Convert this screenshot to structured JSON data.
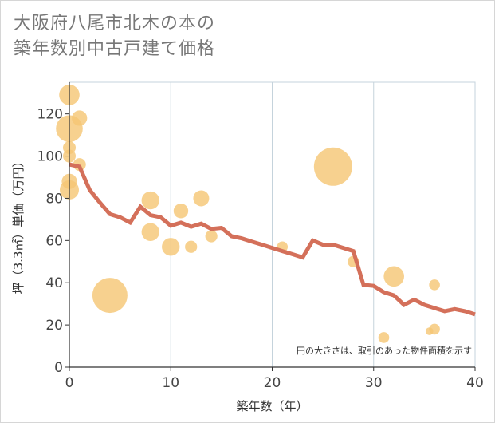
{
  "title_line1": "大阪府八尾市北木の本の",
  "title_line2": "築年数別中古戸建て価格",
  "chart_data": {
    "type": "scatter",
    "xlabel": "築年数（年）",
    "ylabel": "坪（3.3㎡）単価（万円）",
    "xlim": [
      0,
      40
    ],
    "ylim": [
      0,
      135
    ],
    "xticks": [
      0,
      10,
      20,
      30,
      40
    ],
    "yticks": [
      0,
      20,
      40,
      60,
      80,
      100,
      120
    ],
    "grid": true,
    "note": "円の大きさは、取引のあった物件面積を示す",
    "colors": {
      "bubble": "#f5c673",
      "line": "#d4705a",
      "grid": "#c5d3dc"
    },
    "bubbles": [
      {
        "x": 0,
        "y": 129,
        "size": 2.2
      },
      {
        "x": 0,
        "y": 113,
        "size": 3.2
      },
      {
        "x": 1,
        "y": 118,
        "size": 1.4
      },
      {
        "x": 0,
        "y": 104,
        "size": 1.0
      },
      {
        "x": 0,
        "y": 100,
        "size": 1.0
      },
      {
        "x": 1,
        "y": 96,
        "size": 1.0
      },
      {
        "x": 0,
        "y": 88,
        "size": 1.4
      },
      {
        "x": 0,
        "y": 84,
        "size": 2.0
      },
      {
        "x": 4,
        "y": 34,
        "size": 4.5
      },
      {
        "x": 8,
        "y": 79,
        "size": 1.8
      },
      {
        "x": 8,
        "y": 64,
        "size": 1.8
      },
      {
        "x": 10,
        "y": 57,
        "size": 1.8
      },
      {
        "x": 11,
        "y": 74,
        "size": 1.3
      },
      {
        "x": 12,
        "y": 57,
        "size": 0.9
      },
      {
        "x": 13,
        "y": 80,
        "size": 1.5
      },
      {
        "x": 14,
        "y": 62,
        "size": 0.9
      },
      {
        "x": 21,
        "y": 57,
        "size": 0.7
      },
      {
        "x": 26,
        "y": 95,
        "size": 5.0
      },
      {
        "x": 28,
        "y": 50,
        "size": 0.8
      },
      {
        "x": 31,
        "y": 14,
        "size": 0.7
      },
      {
        "x": 32,
        "y": 43,
        "size": 2.2
      },
      {
        "x": 36,
        "y": 39,
        "size": 0.7
      },
      {
        "x": 35.5,
        "y": 17,
        "size": 0.2
      },
      {
        "x": 36,
        "y": 18,
        "size": 0.7
      }
    ],
    "series": [
      {
        "x": [
          0,
          1,
          2,
          3,
          4,
          5,
          6,
          7,
          8,
          9,
          10,
          11,
          12,
          13,
          14,
          15,
          16,
          17,
          18,
          19,
          20,
          21,
          22,
          23,
          24,
          25,
          26,
          27,
          28,
          29,
          30,
          31,
          32,
          33,
          34,
          35,
          36,
          37,
          38,
          39,
          40
        ],
        "y": [
          96,
          95,
          84,
          78,
          72.5,
          71,
          68.5,
          76,
          72,
          71,
          67,
          68.5,
          66.5,
          68,
          65.5,
          66,
          62,
          61,
          59.5,
          58,
          56.5,
          55,
          53.5,
          52,
          60,
          58,
          58,
          56.5,
          55,
          39,
          38.5,
          35.5,
          34,
          29.5,
          32,
          29.5,
          28,
          26.5,
          27.5,
          26.5,
          25
        ]
      }
    ]
  }
}
